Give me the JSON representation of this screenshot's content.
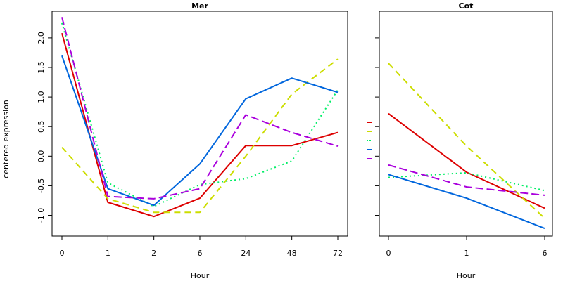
{
  "ylabel": "centered expression",
  "colors": {
    "red": "#dd0000",
    "yellow": "#ccdd00",
    "green": "#00ee66",
    "blue": "#0066dd",
    "purple": "#aa00dd"
  },
  "chart_data": [
    {
      "type": "line",
      "title": "Mer",
      "xlabel": "Hour",
      "ylabel": "centered expression",
      "categories": [
        "0",
        "1",
        "2",
        "6",
        "24",
        "48",
        "72"
      ],
      "ylim": [
        -1.35,
        2.45
      ],
      "yticks": [
        "-1.0",
        "-0.5",
        "0.0",
        "0.5",
        "1.0",
        "1.5",
        "2.0"
      ],
      "ytick_values": [
        -1.0,
        -0.5,
        0.0,
        0.5,
        1.0,
        1.5,
        2.0
      ],
      "grid": false,
      "series": [
        {
          "color": "#dd0000",
          "dash": "solid",
          "values": [
            2.08,
            -0.78,
            -1.02,
            -0.71,
            0.18,
            0.18,
            0.4
          ]
        },
        {
          "color": "#ccdd00",
          "dash": "dashed",
          "values": [
            0.15,
            -0.72,
            -0.95,
            -0.95,
            0.0,
            1.05,
            1.64
          ]
        },
        {
          "color": "#00ee66",
          "dash": "dotted",
          "values": [
            2.25,
            -0.45,
            -0.85,
            -0.48,
            -0.38,
            -0.08,
            1.12
          ]
        },
        {
          "color": "#0066dd",
          "dash": "solid",
          "values": [
            1.7,
            -0.55,
            -0.83,
            -0.13,
            0.97,
            1.32,
            1.08
          ]
        },
        {
          "color": "#aa00dd",
          "dash": "longdash",
          "values": [
            2.35,
            -0.68,
            -0.72,
            -0.55,
            0.7,
            0.4,
            0.17
          ]
        }
      ]
    },
    {
      "type": "line",
      "title": "Cot",
      "xlabel": "Hour",
      "categories": [
        "0",
        "1",
        "6"
      ],
      "ylim": [
        -1.35,
        2.45
      ],
      "grid": false,
      "series": [
        {
          "color": "#dd0000",
          "dash": "solid",
          "values": [
            0.72,
            -0.27,
            -0.88
          ]
        },
        {
          "color": "#ccdd00",
          "dash": "dashed",
          "values": [
            1.57,
            0.17,
            -1.05
          ]
        },
        {
          "color": "#00ee66",
          "dash": "dotted",
          "values": [
            -0.36,
            -0.28,
            -0.58
          ]
        },
        {
          "color": "#0066dd",
          "dash": "solid",
          "values": [
            -0.31,
            -0.71,
            -1.22
          ]
        },
        {
          "color": "#aa00dd",
          "dash": "longdash",
          "values": [
            -0.15,
            -0.52,
            -0.66
          ]
        }
      ]
    }
  ],
  "legend_keys": [
    {
      "color": "#dd0000",
      "dash": "solid"
    },
    {
      "color": "#ccdd00",
      "dash": "dashed"
    },
    {
      "color": "#00ee66",
      "dash": "dotted"
    },
    {
      "color": "#0066dd",
      "dash": "solid"
    },
    {
      "color": "#aa00dd",
      "dash": "longdash"
    }
  ]
}
